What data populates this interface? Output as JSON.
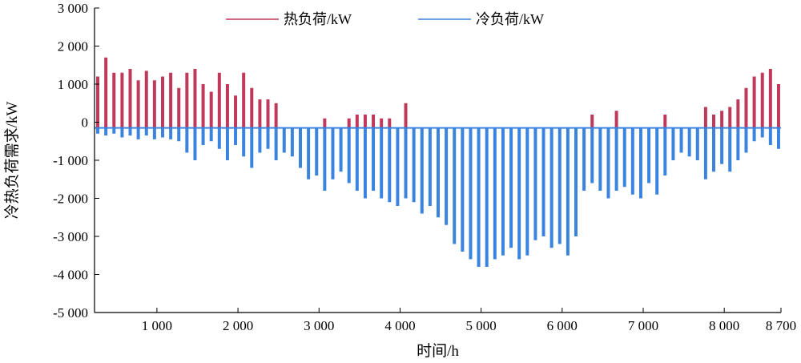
{
  "chart_data": {
    "type": "bar",
    "xlabel": "时间/h",
    "ylabel": "冷热负荷需求/kW",
    "xlim": [
      230,
      8700
    ],
    "ylim": [
      -5000,
      3000
    ],
    "x_ticks": [
      1000,
      2000,
      3000,
      4000,
      5000,
      6000,
      7000,
      8000,
      8700
    ],
    "x_tick_labels": [
      "1 000",
      "2 000",
      "3 000",
      "4 000",
      "5 000",
      "6 000",
      "7 000",
      "8 000",
      "8 700"
    ],
    "y_ticks": [
      3000,
      2000,
      1000,
      0,
      -1000,
      -2000,
      -3000,
      -4000,
      -5000
    ],
    "y_tick_labels": [
      "3 000",
      "2 000",
      "1 000",
      "0",
      "-1 000",
      "-2 000",
      "-3 000",
      "-4 000",
      "-5 000"
    ],
    "baseline": -150,
    "grid": false,
    "legend_position": "top",
    "series": [
      {
        "name": "热负荷/kW",
        "color": "#c0395a",
        "x": [
          270,
          370,
          470,
          570,
          670,
          770,
          870,
          970,
          1070,
          1170,
          1270,
          1370,
          1470,
          1570,
          1670,
          1770,
          1870,
          1970,
          2070,
          2170,
          2270,
          2370,
          2470,
          2570,
          2670,
          2770,
          2870,
          2970,
          3070,
          3170,
          3270,
          3370,
          3470,
          3570,
          3670,
          3770,
          3870,
          3970,
          4070,
          4170,
          4270,
          4370,
          4470,
          4570,
          4670,
          4770,
          4870,
          4970,
          5070,
          5170,
          5270,
          5370,
          5470,
          5570,
          5670,
          5770,
          5870,
          5970,
          6070,
          6170,
          6270,
          6370,
          6470,
          6570,
          6670,
          6770,
          6870,
          6970,
          7070,
          7170,
          7270,
          7370,
          7470,
          7570,
          7670,
          7770,
          7870,
          7970,
          8070,
          8170,
          8270,
          8370,
          8470,
          8570,
          8670
        ],
        "values": [
          1200,
          1700,
          1300,
          1300,
          1400,
          1100,
          1350,
          1100,
          1200,
          1300,
          900,
          1300,
          1400,
          1000,
          800,
          1300,
          1000,
          700,
          1300,
          900,
          600,
          600,
          500,
          0,
          0,
          0,
          0,
          0,
          100,
          0,
          0,
          100,
          200,
          200,
          200,
          100,
          100,
          0,
          500,
          0,
          0,
          0,
          0,
          0,
          0,
          0,
          0,
          0,
          0,
          0,
          0,
          0,
          0,
          0,
          0,
          0,
          0,
          0,
          0,
          0,
          0,
          200,
          0,
          0,
          300,
          0,
          0,
          0,
          0,
          0,
          200,
          0,
          0,
          0,
          0,
          400,
          200,
          300,
          400,
          600,
          900,
          1200,
          1300,
          1400,
          1000
        ]
      },
      {
        "name": "冷负荷/kW",
        "color": "#3a84e0",
        "x": [
          270,
          370,
          470,
          570,
          670,
          770,
          870,
          970,
          1070,
          1170,
          1270,
          1370,
          1470,
          1570,
          1670,
          1770,
          1870,
          1970,
          2070,
          2170,
          2270,
          2370,
          2470,
          2570,
          2670,
          2770,
          2870,
          2970,
          3070,
          3170,
          3270,
          3370,
          3470,
          3570,
          3670,
          3770,
          3870,
          3970,
          4070,
          4170,
          4270,
          4370,
          4470,
          4570,
          4670,
          4770,
          4870,
          4970,
          5070,
          5170,
          5270,
          5370,
          5470,
          5570,
          5670,
          5770,
          5870,
          5970,
          6070,
          6170,
          6270,
          6370,
          6470,
          6570,
          6670,
          6770,
          6870,
          6970,
          7070,
          7170,
          7270,
          7370,
          7470,
          7570,
          7670,
          7770,
          7870,
          7970,
          8070,
          8170,
          8270,
          8370,
          8470,
          8570,
          8670
        ],
        "values": [
          -300,
          -350,
          -300,
          -400,
          -350,
          -450,
          -350,
          -450,
          -400,
          -450,
          -500,
          -800,
          -1000,
          -600,
          -500,
          -700,
          -1000,
          -600,
          -900,
          -1200,
          -800,
          -700,
          -1000,
          -800,
          -900,
          -1200,
          -1500,
          -1400,
          -1800,
          -1500,
          -1300,
          -1600,
          -1800,
          -2000,
          -1800,
          -2000,
          -2100,
          -2200,
          -2000,
          -2100,
          -2400,
          -2200,
          -2500,
          -2700,
          -3200,
          -3400,
          -3600,
          -3800,
          -3800,
          -3600,
          -3500,
          -3300,
          -3600,
          -3500,
          -3100,
          -3000,
          -3300,
          -3200,
          -3500,
          -3000,
          -1800,
          -1600,
          -1800,
          -2000,
          -1800,
          -1700,
          -1900,
          -2000,
          -1600,
          -1900,
          -1400,
          -1000,
          -800,
          -900,
          -1000,
          -1500,
          -1300,
          -1100,
          -1300,
          -1000,
          -800,
          -500,
          -400,
          -600,
          -700
        ]
      }
    ]
  }
}
